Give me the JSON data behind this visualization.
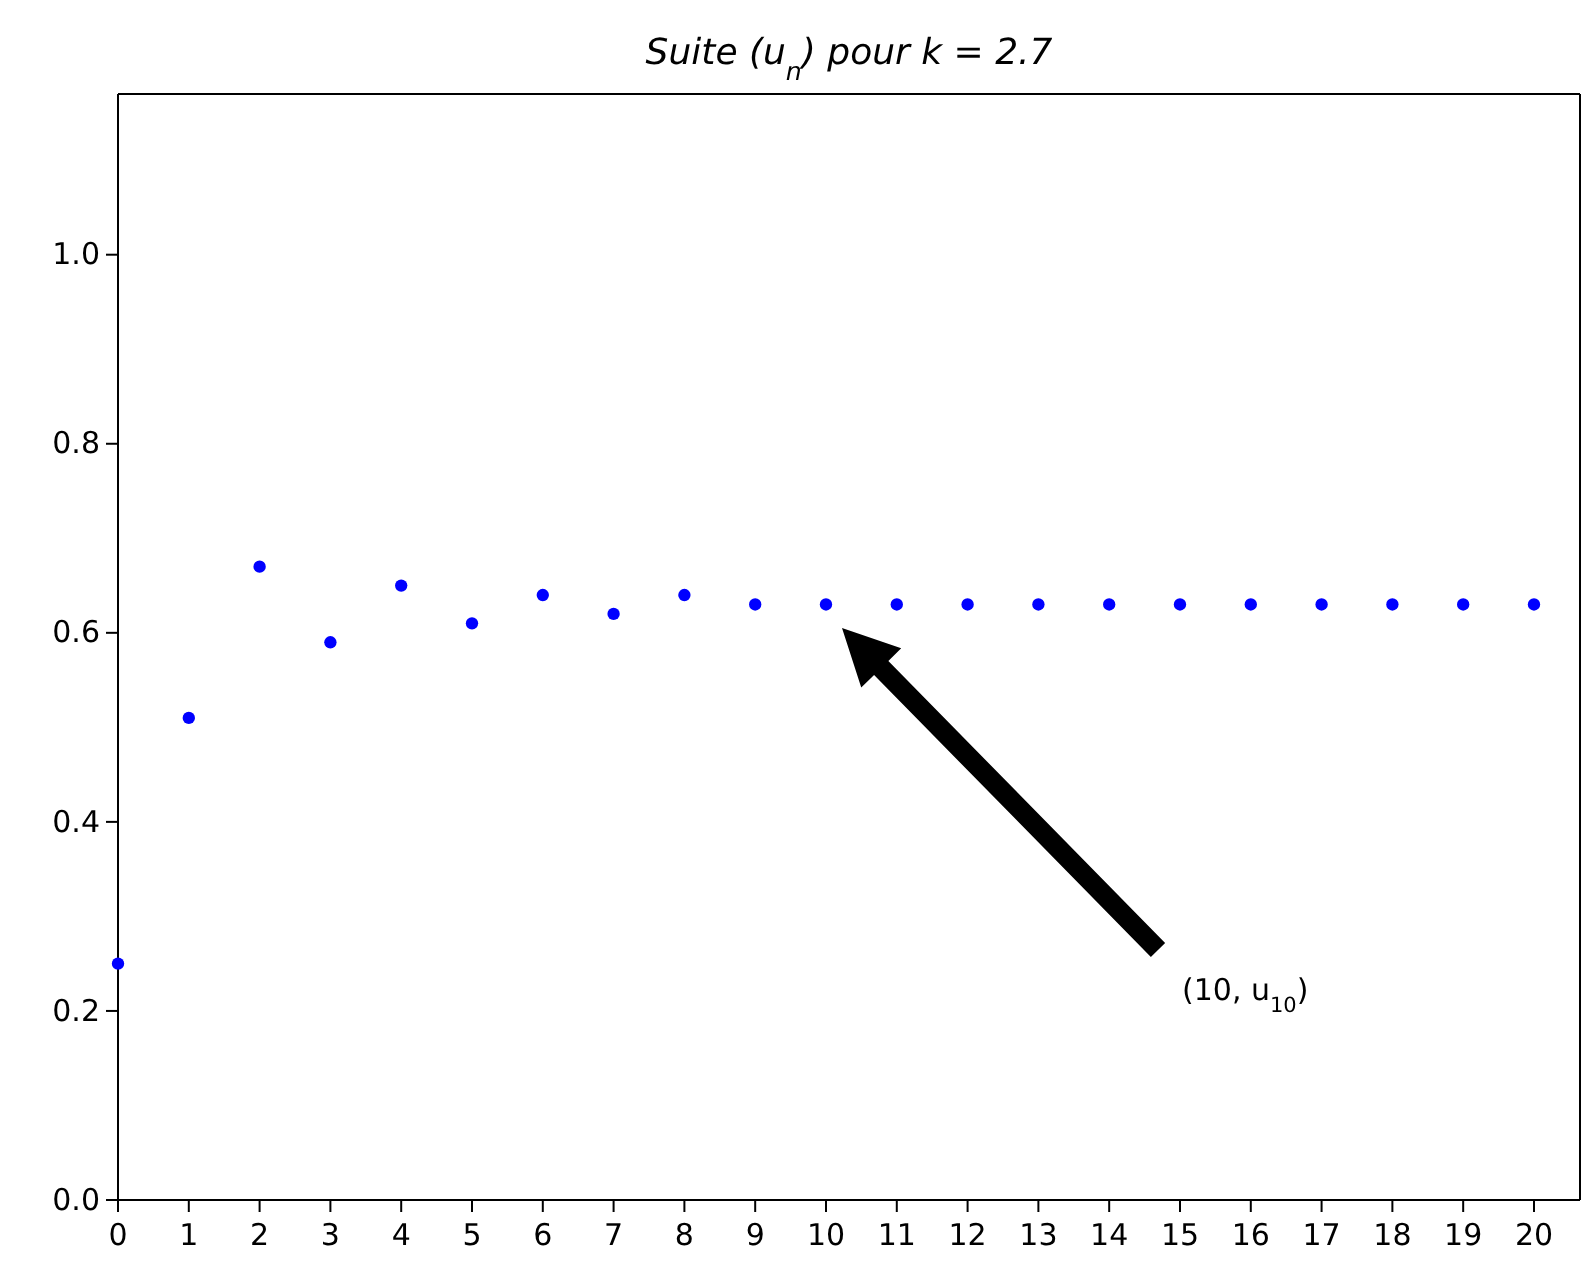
{
  "chart_data": {
    "type": "scatter",
    "title": "Suite (u$_{n}$) pour k = 2.7",
    "x": [
      0,
      1,
      2,
      3,
      4,
      5,
      6,
      7,
      8,
      9,
      10,
      11,
      12,
      13,
      14,
      15,
      16,
      17,
      18,
      19,
      20
    ],
    "series": [
      {
        "color": "#0000ff",
        "values": [
          0.25,
          0.51,
          0.67,
          0.59,
          0.65,
          0.61,
          0.64,
          0.62,
          0.64,
          0.63,
          0.63,
          0.63,
          0.63,
          0.63,
          0.63,
          0.63,
          0.63,
          0.63,
          0.63,
          0.63,
          0.63
        ]
      }
    ],
    "xlim": [
      0,
      20.65
    ],
    "xticks": [
      0,
      1,
      2,
      3,
      4,
      5,
      6,
      7,
      8,
      9,
      10,
      11,
      12,
      13,
      14,
      15,
      16,
      17,
      18,
      19,
      20
    ],
    "ylim": [
      0,
      1.17
    ],
    "yticks": [
      {
        "value": 0,
        "label": "0.0"
      },
      {
        "value": 0.2,
        "label": "0.2"
      },
      {
        "value": 0.4,
        "label": "0.4"
      },
      {
        "value": 0.6,
        "label": "0.6"
      },
      {
        "value": 0.8,
        "label": "0.8"
      },
      {
        "value": 1,
        "label": "1.0"
      }
    ],
    "marker": "circle",
    "grid": false,
    "annotations": [
      "(10, u$_{10}$)"
    ]
  }
}
